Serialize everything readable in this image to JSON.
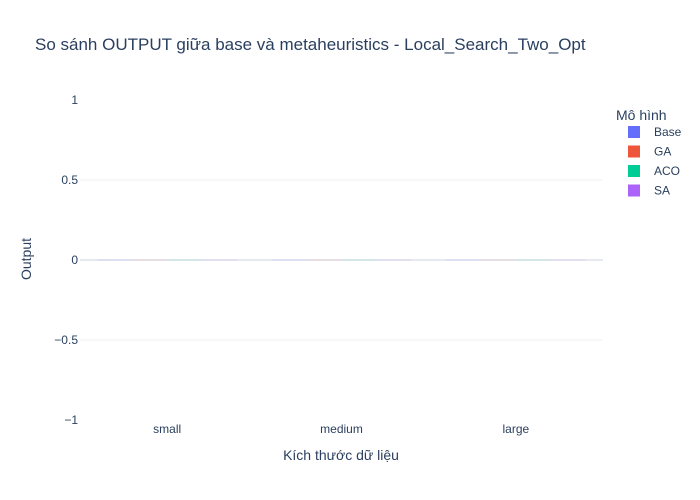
{
  "chart_data": {
    "type": "bar",
    "title": "So sánh OUTPUT giữa base và metaheuristics - Local_Search_Two_Opt",
    "xlabel": "Kích thước dữ liệu",
    "ylabel": "Output",
    "categories": [
      "small",
      "medium",
      "large"
    ],
    "ylim": [
      -1,
      1
    ],
    "yticks": [
      1,
      0.5,
      0,
      -0.5,
      -1
    ],
    "ytick_labels": [
      "1",
      "0.5",
      "0",
      "−0.5",
      "−1"
    ],
    "grid": true,
    "legend": {
      "title": "Mô hình",
      "placement": "top-right"
    },
    "series": [
      {
        "name": "Base",
        "color": "#636efa",
        "values": [
          0,
          0,
          0
        ]
      },
      {
        "name": "GA",
        "color": "#ef553b",
        "values": [
          0,
          0,
          0
        ]
      },
      {
        "name": "ACO",
        "color": "#00cc96",
        "values": [
          0,
          0,
          0
        ]
      },
      {
        "name": "SA",
        "color": "#ab63fa",
        "values": [
          0,
          0,
          0
        ]
      }
    ]
  }
}
